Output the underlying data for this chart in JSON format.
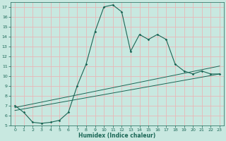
{
  "bg_color": "#c8e8e0",
  "grid_color": "#e8b8b8",
  "line_color": "#1a6655",
  "xlabel": "Humidex (Indice chaleur)",
  "xlim": [
    -0.5,
    23.5
  ],
  "ylim": [
    5,
    17.5
  ],
  "yticks": [
    5,
    6,
    7,
    8,
    9,
    10,
    11,
    12,
    13,
    14,
    15,
    16,
    17
  ],
  "xticks": [
    0,
    1,
    2,
    3,
    4,
    5,
    6,
    7,
    8,
    9,
    10,
    11,
    12,
    13,
    14,
    15,
    16,
    17,
    18,
    19,
    20,
    21,
    22,
    23
  ],
  "line1_x": [
    0,
    1,
    2,
    3,
    4,
    5,
    6,
    7,
    8,
    9,
    10,
    11,
    12,
    13,
    14,
    15,
    16,
    17,
    18,
    19,
    20,
    21,
    22,
    23
  ],
  "line1_y": [
    7.0,
    6.3,
    5.3,
    5.2,
    5.3,
    5.5,
    6.3,
    9.0,
    11.2,
    14.5,
    17.0,
    17.2,
    16.5,
    12.5,
    14.2,
    13.7,
    14.2,
    13.7,
    11.2,
    10.5,
    10.2,
    10.5,
    10.2,
    10.2
  ],
  "line2_x": [
    0,
    23
  ],
  "line2_y": [
    6.5,
    10.2
  ],
  "line3_x": [
    0,
    23
  ],
  "line3_y": [
    6.8,
    11.0
  ]
}
